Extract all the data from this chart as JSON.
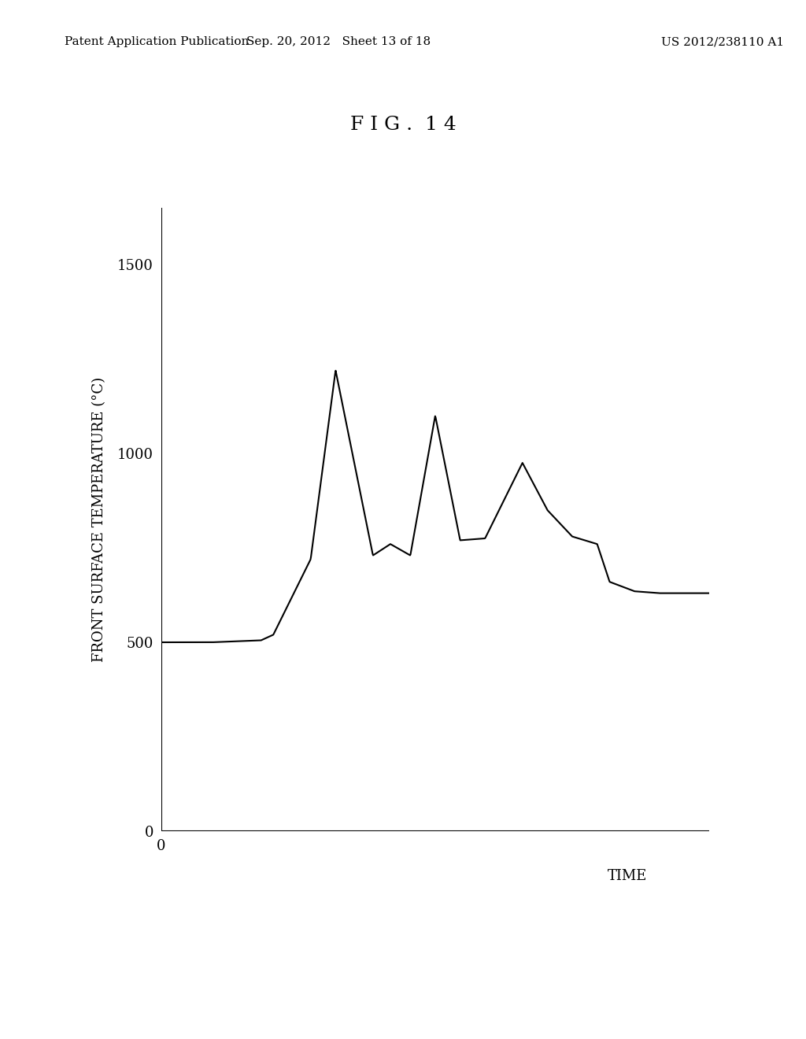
{
  "title": "F I G .  1 4",
  "header_left": "Patent Application Publication",
  "header_mid": "Sep. 20, 2012   Sheet 13 of 18",
  "header_right": "US 2012/238110 A1",
  "ylabel": "FRONT SURFACE TEMPERATURE (°C)",
  "xlabel": "TIME",
  "yticks": [
    0,
    500,
    1000,
    1500
  ],
  "background_color": "#ffffff",
  "line_color": "#000000",
  "curve_x": [
    0,
    2,
    4,
    4.5,
    6,
    7,
    8.5,
    9.2,
    10,
    11,
    12,
    13,
    14.5,
    15.5,
    16.5,
    17.5,
    18,
    19,
    20,
    22
  ],
  "curve_y": [
    500,
    500,
    505,
    520,
    720,
    1220,
    730,
    760,
    730,
    1100,
    770,
    775,
    975,
    850,
    780,
    760,
    660,
    635,
    630,
    630
  ],
  "xlim": [
    0,
    22
  ],
  "ylim": [
    0,
    1650
  ],
  "title_fontsize": 18,
  "label_fontsize": 13,
  "tick_fontsize": 13,
  "header_fontsize": 11
}
